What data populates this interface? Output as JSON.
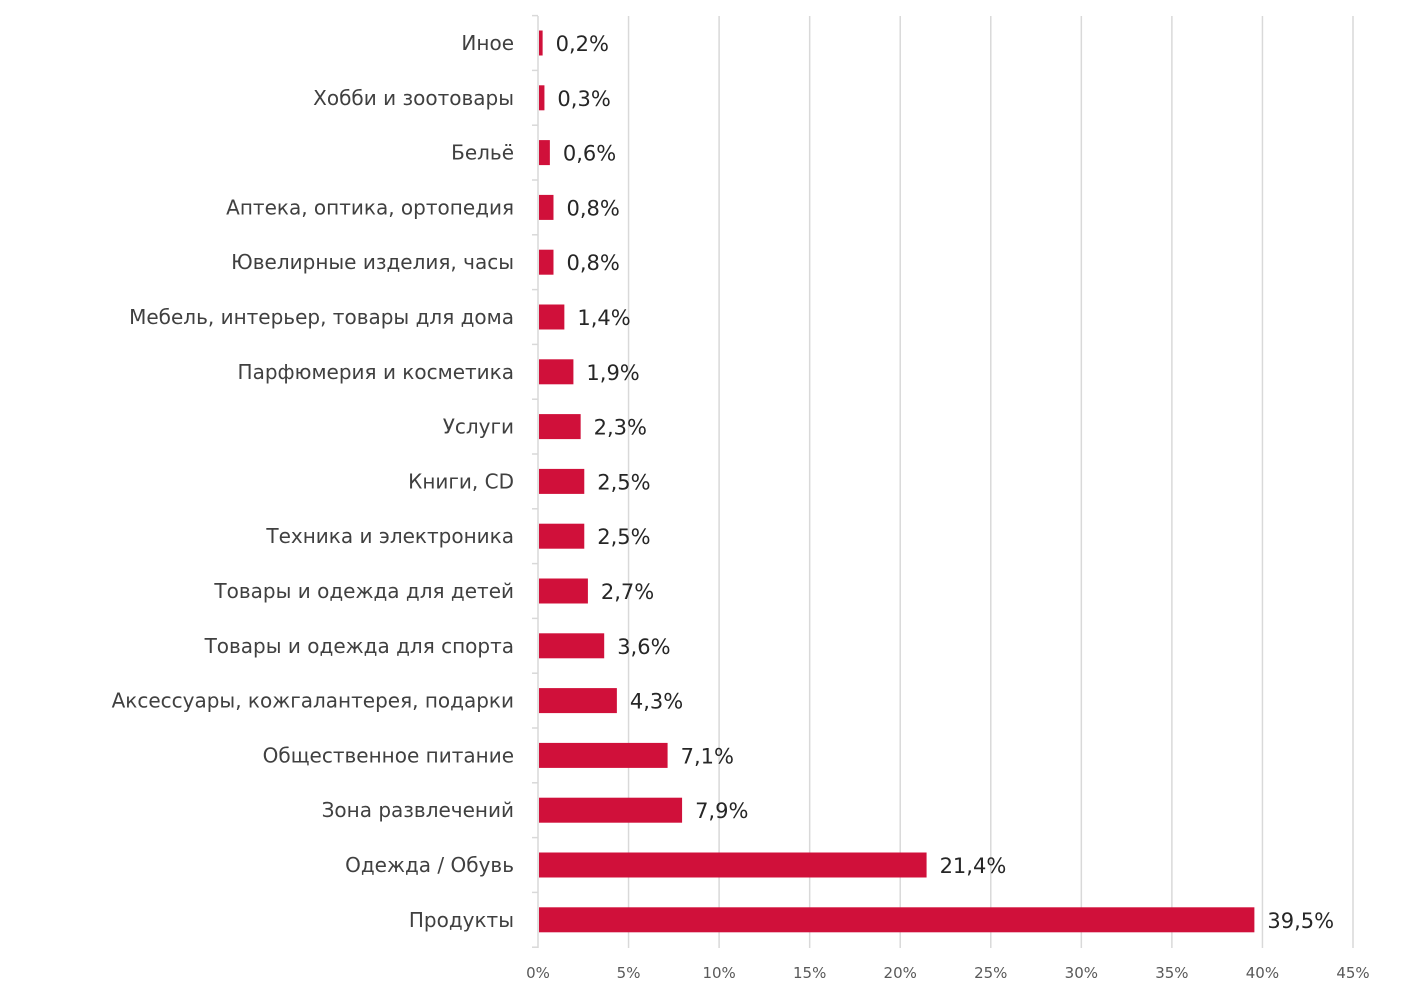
{
  "chart_data": {
    "type": "bar",
    "orientation": "horizontal",
    "title": "",
    "xlabel": "",
    "ylabel": "",
    "xlim": [
      0,
      45
    ],
    "grid": true,
    "legend": "none",
    "categories": [
      "Иное",
      "Хобби и зоотовары",
      "Бельё",
      "Аптека, оптика, ортопедия",
      "Ювелирные изделия, часы",
      "Мебель, интерьер, товары для дома",
      "Парфюмерия и косметика",
      "Услуги",
      "Книги, CD",
      "Техника и электроника",
      "Товары и одежда для детей",
      "Товары и одежда для спорта",
      "Аксессуары, кожгалантерея, подарки",
      "Общественное питание",
      "Зона развлечений",
      "Одежда / Обувь",
      "Продукты"
    ],
    "values": [
      0.2,
      0.3,
      0.6,
      0.8,
      0.8,
      1.4,
      1.9,
      2.3,
      2.5,
      2.5,
      2.7,
      3.6,
      4.3,
      7.1,
      7.9,
      21.4,
      39.5
    ],
    "value_labels": [
      "0,2%",
      "0,3%",
      "0,6%",
      "0,8%",
      "0,8%",
      "1,4%",
      "1,9%",
      "2,3%",
      "2,5%",
      "2,5%",
      "2,7%",
      "3,6%",
      "4,3%",
      "7,1%",
      "7,9%",
      "21,4%",
      "39,5%"
    ],
    "ticks": [
      0,
      5,
      10,
      15,
      20,
      25,
      30,
      35,
      40,
      45
    ],
    "tick_labels": [
      "0%",
      "5%",
      "10%",
      "15%",
      "20%",
      "25%",
      "30%",
      "35%",
      "40%",
      "45%"
    ],
    "bar_color": "#d0103a",
    "grid_color": "#d9d9d9"
  }
}
